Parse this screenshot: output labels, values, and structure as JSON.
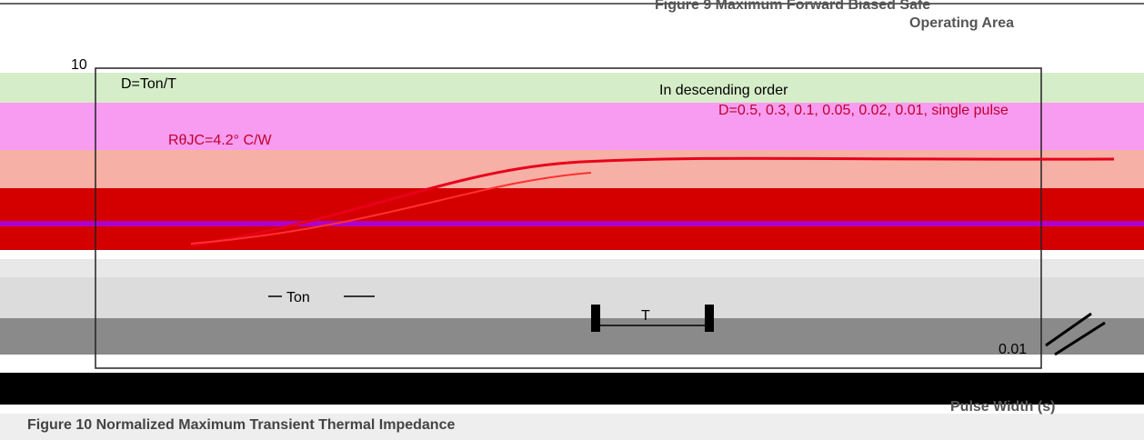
{
  "figure": {
    "top_title": "Figure 9 Maximum Forward Biased Safe",
    "top_subtitle": "Operating Area",
    "y_top_tick": "10",
    "duty": "D=Ton/T",
    "order": "In descending order",
    "duty_list": "D=0.5, 0.3, 0.1, 0.05, 0.02, 0.01, single pulse",
    "resistance": "RθJC=4.2° C/W",
    "ton": "Ton",
    "period": "T",
    "y_low_tick": "0.01",
    "x_label": "Pulse Width (s)",
    "caption": "Figure 10 Normalized Maximum Transient Thermal Impedance"
  }
}
